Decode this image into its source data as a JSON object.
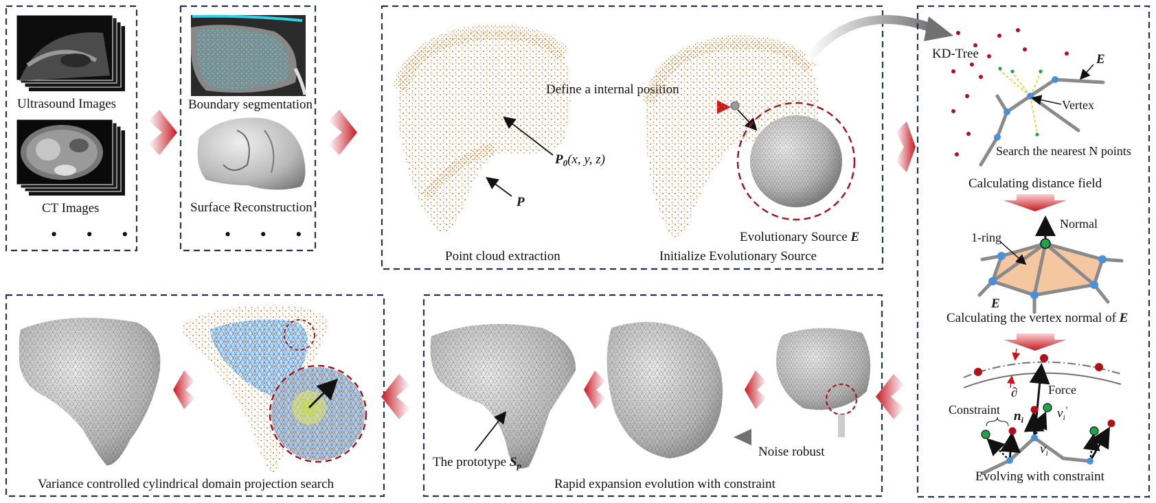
{
  "colors": {
    "panel_border": "#1f3355",
    "point_cloud": "#c87a2a",
    "arrow_red": "#c8181e",
    "vertex_blue": "#4a90d9",
    "mesh_gray": "#9a9a9a",
    "patch_orange": "#f4c7a1",
    "green_node": "#22a24a"
  },
  "labels": {
    "ultrasound": "Ultrasound Images",
    "ct": "CT Images",
    "ellipsis": "• • •",
    "boundary": "Boundary segmentation",
    "surface": "Surface Reconstruction",
    "define_internal": "Define a internal position",
    "p0_bold": "P",
    "p0_sub": "0",
    "p0_coords": "(x, y, z)",
    "p_label": "P",
    "point_cloud_extraction": "Point cloud extraction",
    "evolutionary_source": "Evolutionary Source ",
    "evolutionary_source_e": "E",
    "init_source": "Initialize Evolutionary Source",
    "kdtree": "KD-Tree",
    "e_label": "E",
    "vertex": "Vertex",
    "search_nearest": "Search the nearest N points",
    "calc_distance": "Calculating distance field",
    "normal": "Normal",
    "one_ring": "1-ring",
    "calc_vertex_normal": "Calculating the vertex normal of ",
    "calc_vertex_normal_e": "E",
    "partial": "∂",
    "force": "Force",
    "constraint": "Constraint",
    "n_i": "n",
    "n_i_sub": "i",
    "v_i_prime": "v",
    "v_i_prime_sub": "i",
    "v_i_prime_mark": "′",
    "v_i": "v",
    "v_i_sub": "i",
    "evolving": "Evolving with constraint",
    "variance": "Variance controlled cylindrical domain projection search",
    "prototype": "The prototype ",
    "prototype_s": "S",
    "prototype_sub": "p",
    "noise_robust": "Noise robust",
    "rapid_expansion": "Rapid expansion evolution with constraint"
  }
}
